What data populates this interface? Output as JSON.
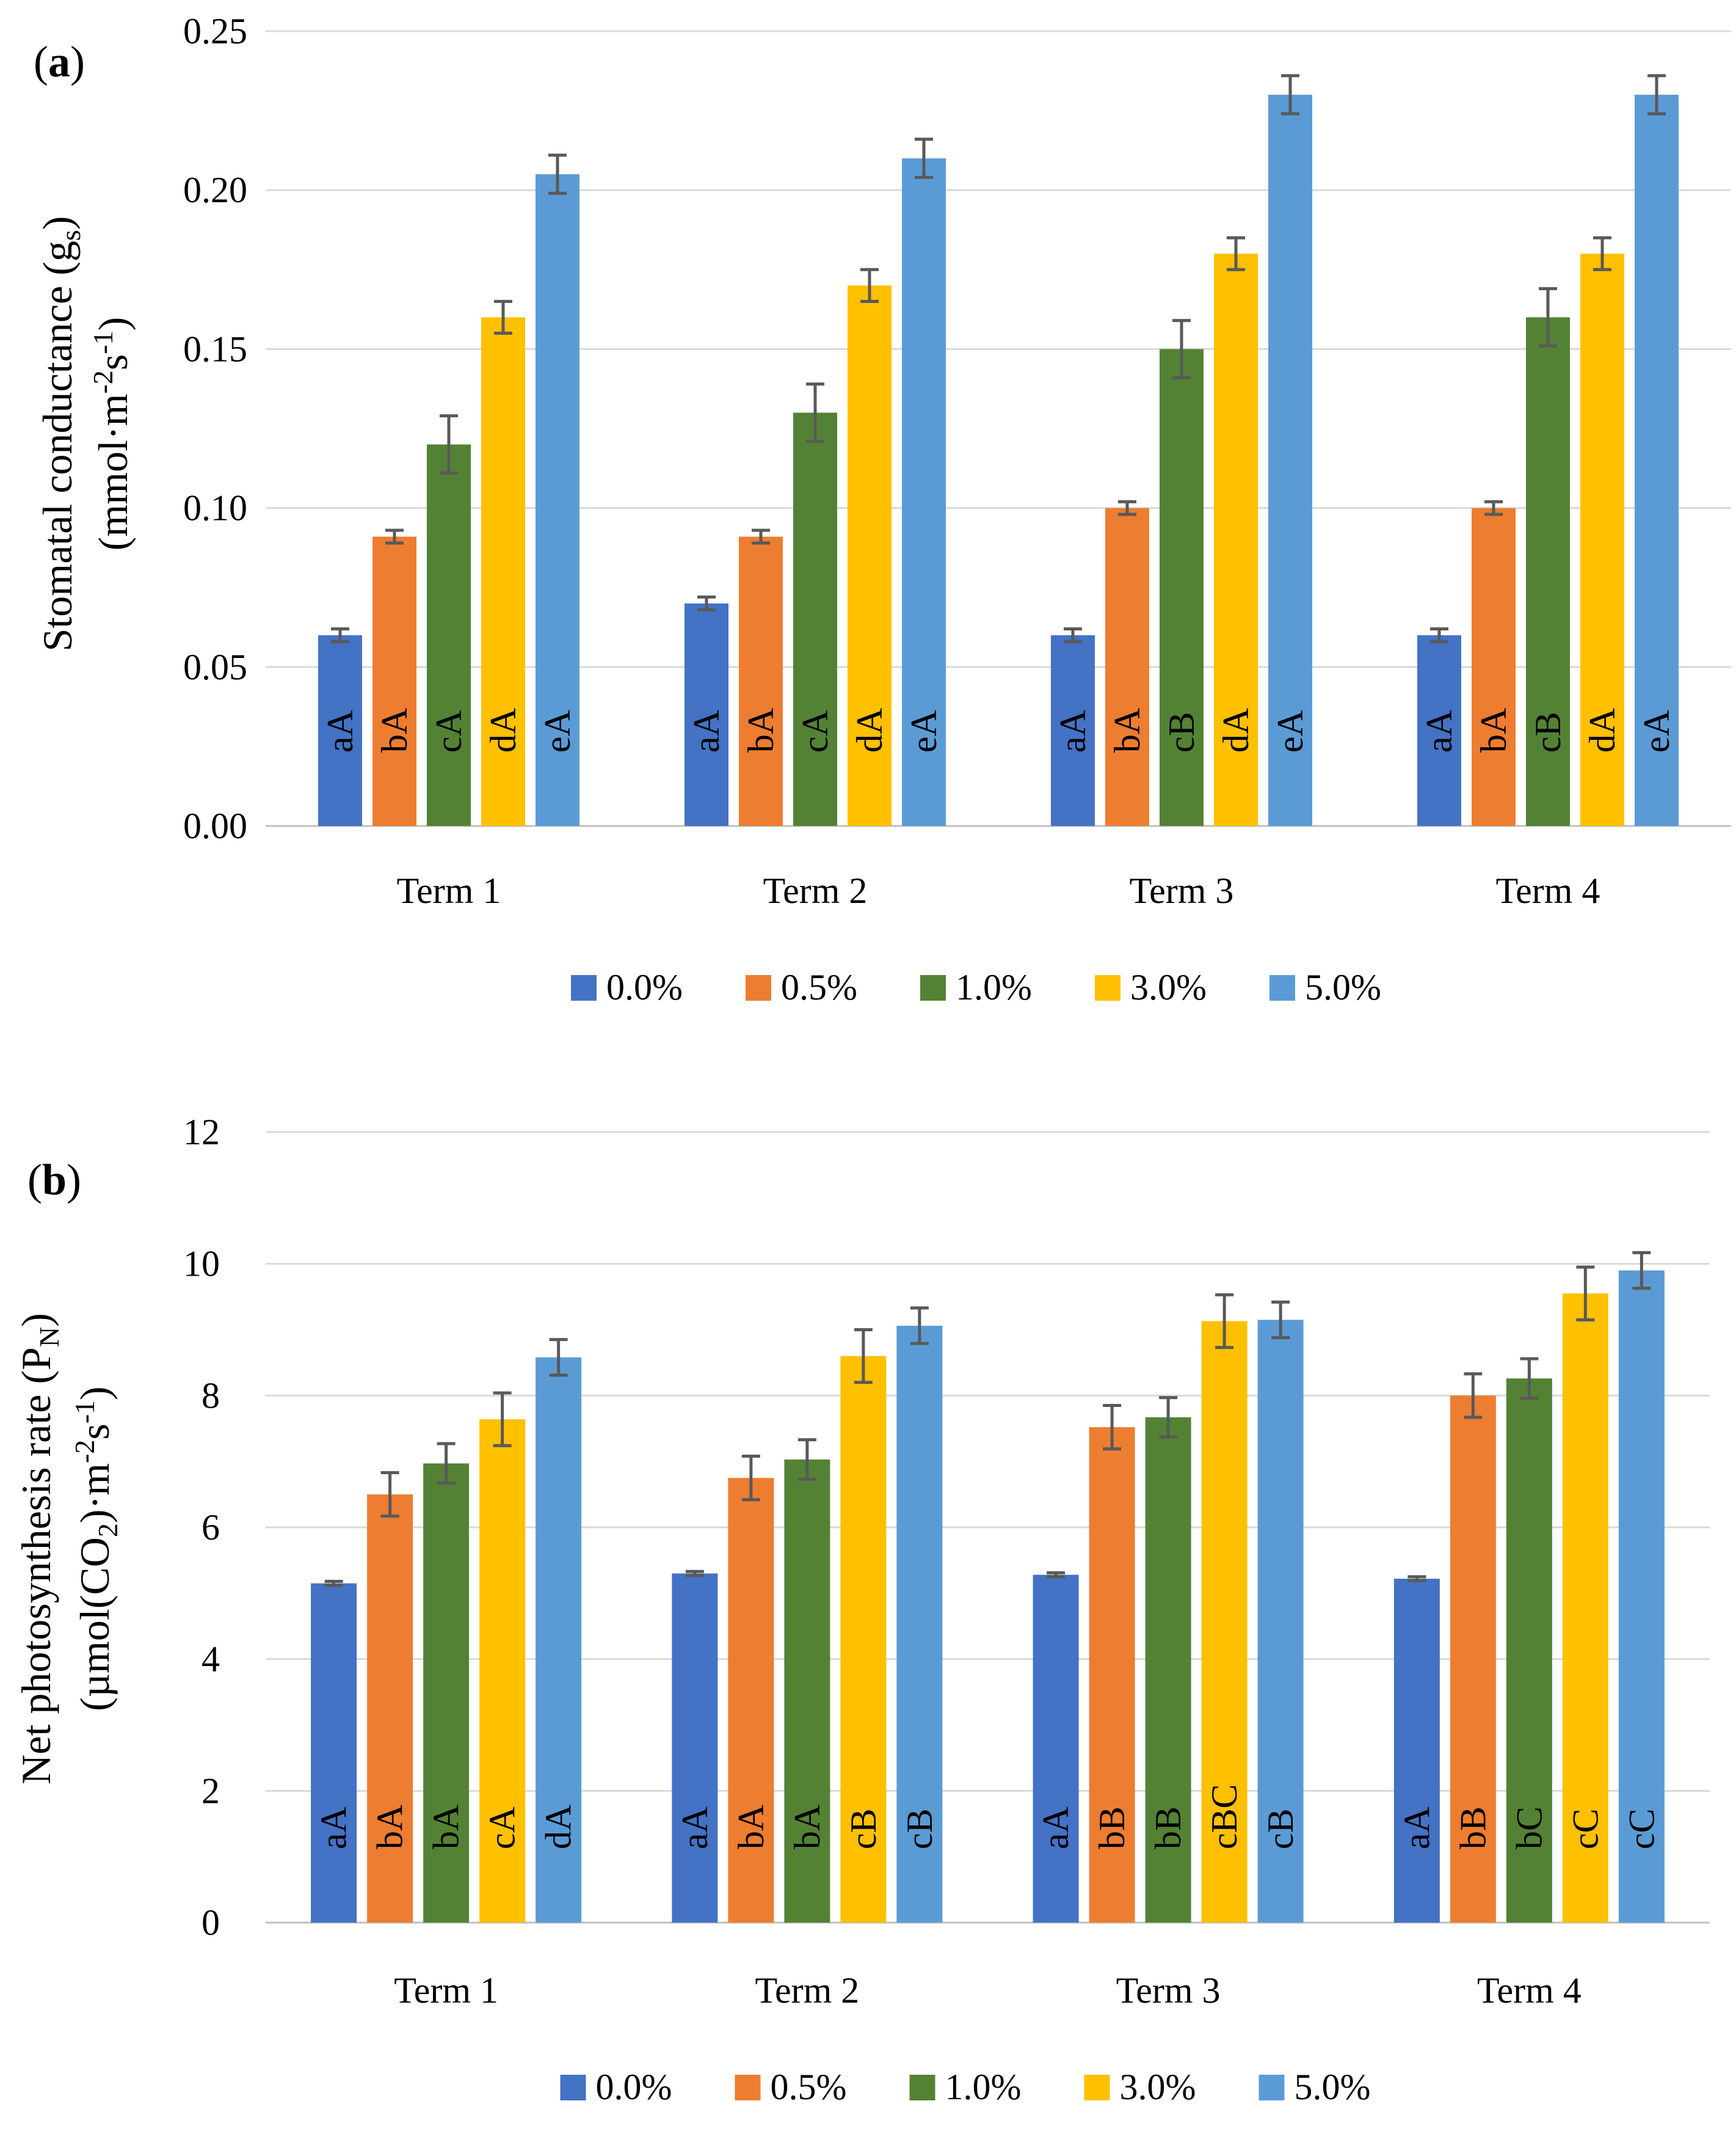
{
  "series_colors": [
    "#4472C4",
    "#ED7D31",
    "#548235",
    "#FFC000",
    "#5B9BD5"
  ],
  "error_bar_color": "#595959",
  "grid_color": "#D9D9D9",
  "chart_data": [
    {
      "type": "bar",
      "panel_label": "a",
      "ylabel_line1": "Stomatal conductance (g",
      "ylabel_sub1": "s",
      "ylabel_after_sub1": ")",
      "ylabel_line2": "(mmol·m",
      "ylabel_sup1": "-2",
      "ylabel_mid2": "s",
      "ylabel_sup2": "-1",
      "ylabel_end2": ")",
      "categories": [
        "Term 1",
        "Term 2",
        "Term 3",
        "Term 4"
      ],
      "ylim": [
        0,
        0.25
      ],
      "yticks": [
        "0.00",
        "0.05",
        "0.10",
        "0.15",
        "0.20",
        "0.25"
      ],
      "series": [
        {
          "name": "0.0%",
          "values": [
            0.06,
            0.07,
            0.06,
            0.06
          ],
          "errors": [
            0.002,
            0.002,
            0.002,
            0.002
          ],
          "letters": [
            "aA",
            "aA",
            "aA",
            "aA"
          ]
        },
        {
          "name": "0.5%",
          "values": [
            0.091,
            0.091,
            0.1,
            0.1
          ],
          "errors": [
            0.002,
            0.002,
            0.002,
            0.002
          ],
          "letters": [
            "bA",
            "bA",
            "bA",
            "bA"
          ]
        },
        {
          "name": "1.0%",
          "values": [
            0.12,
            0.13,
            0.15,
            0.16
          ],
          "errors": [
            0.009,
            0.009,
            0.009,
            0.009
          ],
          "letters": [
            "cA",
            "cA",
            "cB",
            "cB"
          ]
        },
        {
          "name": "3.0%",
          "values": [
            0.16,
            0.17,
            0.18,
            0.18
          ],
          "errors": [
            0.005,
            0.005,
            0.005,
            0.005
          ],
          "letters": [
            "dA",
            "dA",
            "dA",
            "dA"
          ]
        },
        {
          "name": "5.0%",
          "values": [
            0.205,
            0.21,
            0.23,
            0.23
          ],
          "errors": [
            0.006,
            0.006,
            0.006,
            0.006
          ],
          "letters": [
            "eA",
            "eA",
            "eA",
            "eA"
          ]
        }
      ]
    },
    {
      "type": "bar",
      "panel_label": "b",
      "ylabel_line1": "Net photosynthesis rate (P",
      "ylabel_sub1": "N",
      "ylabel_after_sub1": ")",
      "ylabel_line2": "(µmol(CO",
      "ylabel_sub2": "2",
      "ylabel_mid2b": ")·m",
      "ylabel_sup1": "-2",
      "ylabel_mid2": "s",
      "ylabel_sup2": "-1",
      "ylabel_end2": ")",
      "categories": [
        "Term 1",
        "Term 2",
        "Term 3",
        "Term 4"
      ],
      "ylim": [
        0,
        12
      ],
      "yticks": [
        "0",
        "2",
        "4",
        "6",
        "8",
        "10",
        "12"
      ],
      "series": [
        {
          "name": "0.0%",
          "values": [
            5.15,
            5.3,
            5.28,
            5.22
          ],
          "errors": [
            0.03,
            0.03,
            0.03,
            0.03
          ],
          "letters": [
            "aA",
            "aA",
            "aA",
            "aA"
          ]
        },
        {
          "name": "0.5%",
          "values": [
            6.5,
            6.75,
            7.52,
            8.0
          ],
          "errors": [
            0.33,
            0.33,
            0.33,
            0.33
          ],
          "letters": [
            "bA",
            "bA",
            "bB",
            "bB"
          ]
        },
        {
          "name": "1.0%",
          "values": [
            6.97,
            7.03,
            7.67,
            8.26
          ],
          "errors": [
            0.3,
            0.3,
            0.3,
            0.3
          ],
          "letters": [
            "bA",
            "bA",
            "bB",
            "bC"
          ]
        },
        {
          "name": "3.0%",
          "values": [
            7.64,
            8.6,
            9.13,
            9.55
          ],
          "errors": [
            0.4,
            0.4,
            0.4,
            0.4
          ],
          "letters": [
            "cA",
            "cB",
            "cBC",
            "cC"
          ]
        },
        {
          "name": "5.0%",
          "values": [
            8.58,
            9.06,
            9.15,
            9.9
          ],
          "errors": [
            0.27,
            0.27,
            0.27,
            0.27
          ],
          "letters": [
            "dA",
            "cB",
            "cB",
            "cC"
          ]
        }
      ]
    }
  ]
}
